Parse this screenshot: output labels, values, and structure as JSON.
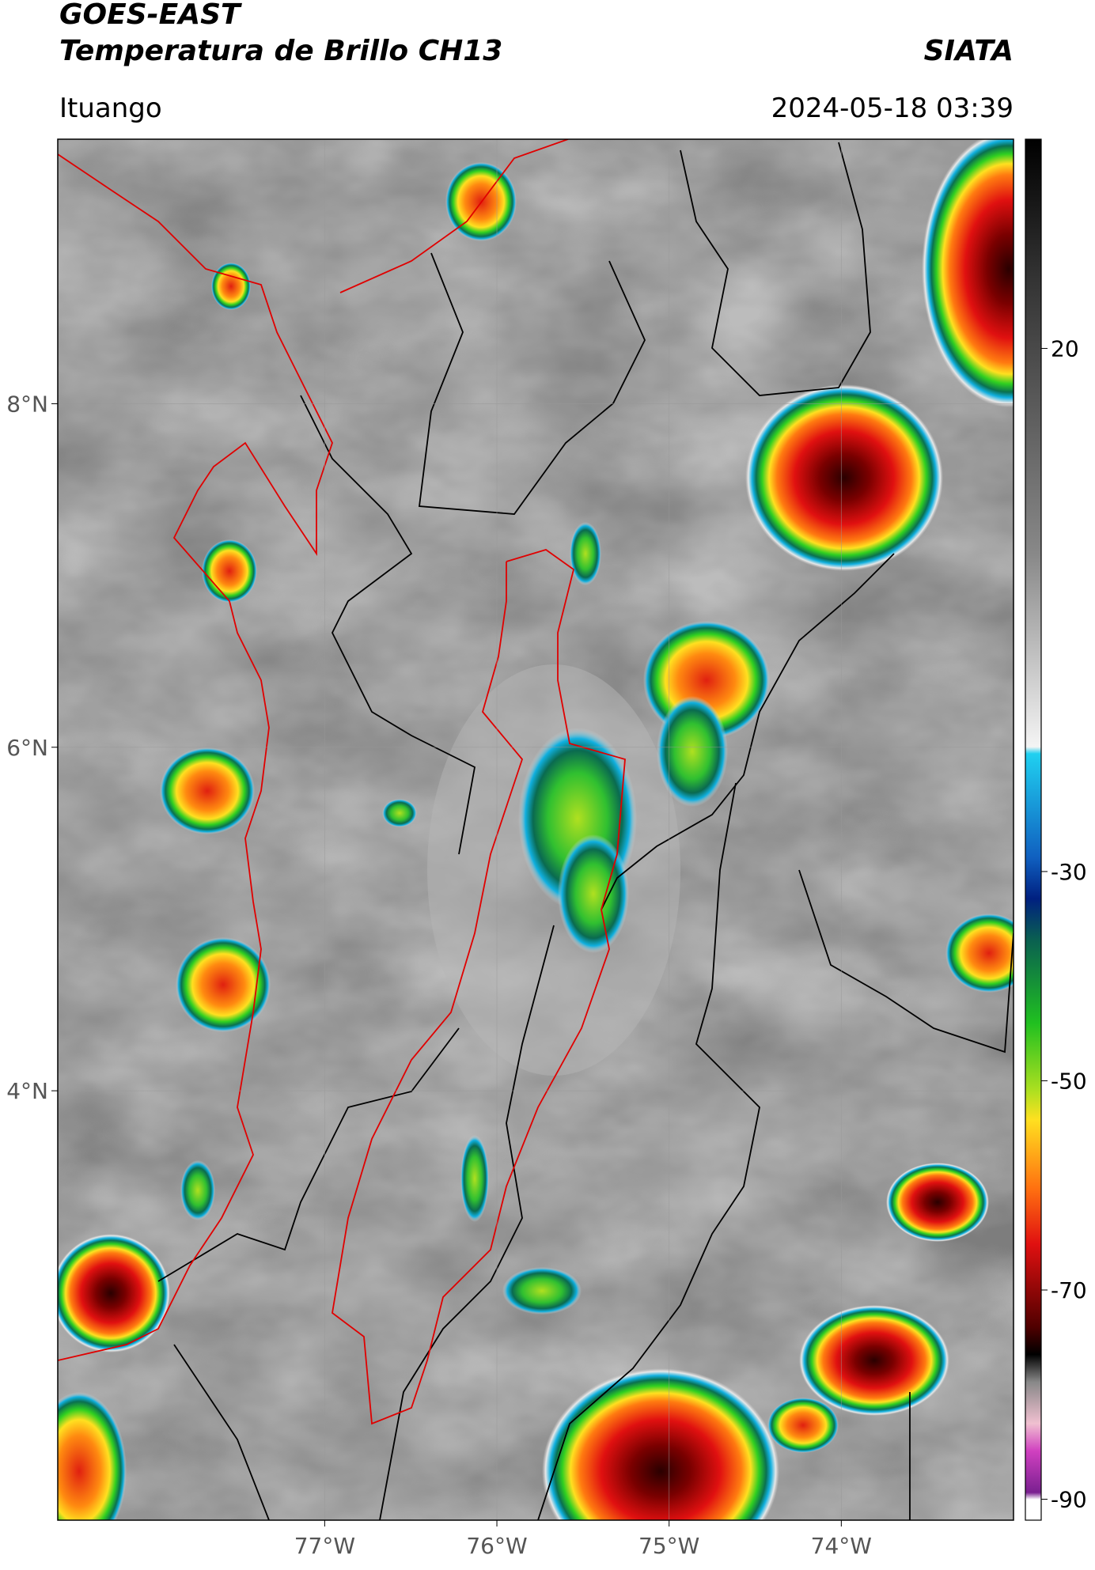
{
  "header": {
    "source": "GOES-EAST",
    "title": "Temperatura de Brillo CH13",
    "agency": "SIATA",
    "region": "Ituango",
    "datetime": "2024-05-18 03:39"
  },
  "map": {
    "xlim": [
      -78.55,
      -73.0
    ],
    "ylim": [
      1.5,
      9.54
    ],
    "xticks": [
      {
        "value": -77,
        "label": "77°W"
      },
      {
        "value": -76,
        "label": "76°W"
      },
      {
        "value": -75,
        "label": "75°W"
      },
      {
        "value": -74,
        "label": "74°W"
      }
    ],
    "yticks": [
      {
        "value": 8,
        "label": "8°N"
      },
      {
        "value": 6,
        "label": "6°N"
      },
      {
        "value": 4,
        "label": "4°N"
      }
    ],
    "grid": true
  },
  "colorbar": {
    "lim": [
      -92,
      40
    ],
    "ticks": [
      20,
      -30,
      -50,
      -70,
      -90
    ]
  }
}
